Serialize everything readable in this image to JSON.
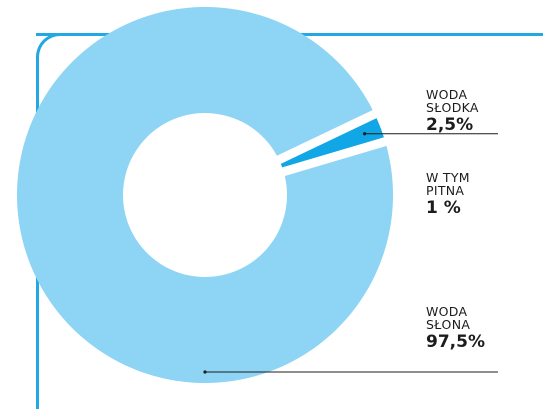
{
  "colors": {
    "frame": "#22a8e2",
    "salt_water": "#8ed4f4",
    "fresh_water": "#11a6e5",
    "background": "#ffffff"
  },
  "chart_data": {
    "type": "pie",
    "donut": true,
    "title": "",
    "slices": [
      {
        "label": "WODA SŁONA",
        "value": 97.5,
        "value_label": "97,5%",
        "color": "#8ed4f4"
      },
      {
        "label": "WODA SŁODKA",
        "value": 2.5,
        "value_label": "2,5%",
        "color": "#11a6e5"
      }
    ],
    "annotations": [
      {
        "title": "WODA SŁODKA",
        "value_label": "2,5%"
      },
      {
        "title": "W TYM PITNA",
        "value_label": "1 %"
      },
      {
        "title": "WODA SŁONA",
        "value_label": "97,5%"
      }
    ]
  }
}
